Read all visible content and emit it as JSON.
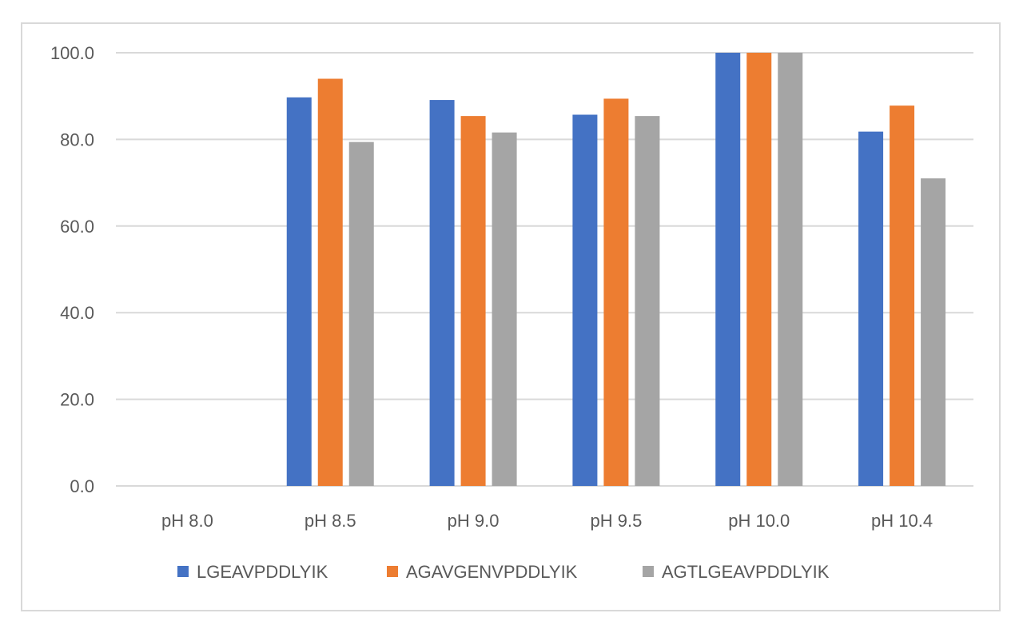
{
  "chart_data": {
    "type": "bar",
    "categories": [
      "pH 8.0",
      "pH 8.5",
      "pH 9.0",
      "pH 9.5",
      "pH 10.0",
      "pH 10.4"
    ],
    "series": [
      {
        "name": "LGEAVPDDLYIK",
        "color": "#4472c4",
        "values": [
          0,
          89.7,
          89.1,
          85.7,
          100.0,
          81.8
        ]
      },
      {
        "name": "AGAVGENVPDDLYIK",
        "color": "#ed7d31",
        "values": [
          0,
          94.0,
          85.4,
          89.4,
          100.0,
          87.8
        ]
      },
      {
        "name": "AGTLGEAVPDDLYIK",
        "color": "#a5a5a5",
        "values": [
          0,
          79.4,
          81.6,
          85.4,
          100.0,
          71.0
        ]
      }
    ],
    "y_ticks": [
      "0.0",
      "20.0",
      "40.0",
      "60.0",
      "80.0",
      "100.0"
    ],
    "ylim": [
      0,
      100
    ],
    "title": "",
    "xlabel": "",
    "ylabel": "",
    "grid": true,
    "legend_position": "bottom"
  }
}
